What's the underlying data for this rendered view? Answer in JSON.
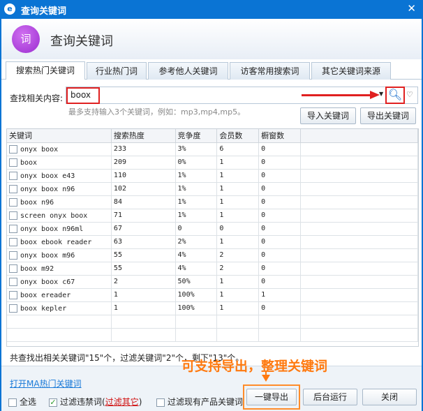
{
  "window": {
    "title": "查询关键词",
    "close": "✕"
  },
  "header": {
    "icon_text": "词",
    "title": "查询关键词"
  },
  "tabs": [
    {
      "label": "搜索热门关键词",
      "active": true
    },
    {
      "label": "行业热门词"
    },
    {
      "label": "参考他人关键词"
    },
    {
      "label": "访客常用搜索词"
    },
    {
      "label": "其它关键词来源"
    }
  ],
  "search": {
    "label": "查找相关内容:",
    "value": "boox",
    "hint": "最多支持输入3个关键词，例如：mp3,mp4,mp5。",
    "import_label": "导入关键词",
    "export_label": "导出关键词"
  },
  "table": {
    "columns": [
      "关键词",
      "搜索热度",
      "竞争度",
      "会员数",
      "橱窗数"
    ],
    "rows": [
      [
        "onyx boox",
        "233",
        "3%",
        "6",
        "0"
      ],
      [
        "boox",
        "209",
        "0%",
        "1",
        "0"
      ],
      [
        "onyx boox e43",
        "110",
        "1%",
        "1",
        "0"
      ],
      [
        "onyx boox n96",
        "102",
        "1%",
        "1",
        "0"
      ],
      [
        "boox n96",
        "84",
        "1%",
        "1",
        "0"
      ],
      [
        "screen onyx boox",
        "71",
        "1%",
        "1",
        "0"
      ],
      [
        "onyx boox n96ml",
        "67",
        "0",
        "0",
        "0"
      ],
      [
        "boox ebook reader",
        "63",
        "2%",
        "1",
        "0"
      ],
      [
        "onyx boox m96",
        "55",
        "4%",
        "2",
        "0"
      ],
      [
        "boox m92",
        "55",
        "4%",
        "2",
        "0"
      ],
      [
        "onyx boox c67",
        "2",
        "50%",
        "1",
        "0"
      ],
      [
        "boox ereader",
        "1",
        "100%",
        "1",
        "1"
      ],
      [
        "boox kepler",
        "1",
        "100%",
        "1",
        "0"
      ]
    ]
  },
  "summary": "共查找出相关关键词\"15\"个，过滤关键词\"2\"个，剩下\"13\"个。",
  "annotation": "可支持导出，整理关键词",
  "footer": {
    "link": "打开MA热门关键词",
    "select_all": "全选",
    "filter_banned": "过滤违禁词(",
    "filter_other": "过滤其它",
    "paren_close": ")",
    "filter_existing": "过滤现有产品关键词",
    "export_one": "一键导出",
    "background": "后台运行",
    "close": "关闭"
  }
}
